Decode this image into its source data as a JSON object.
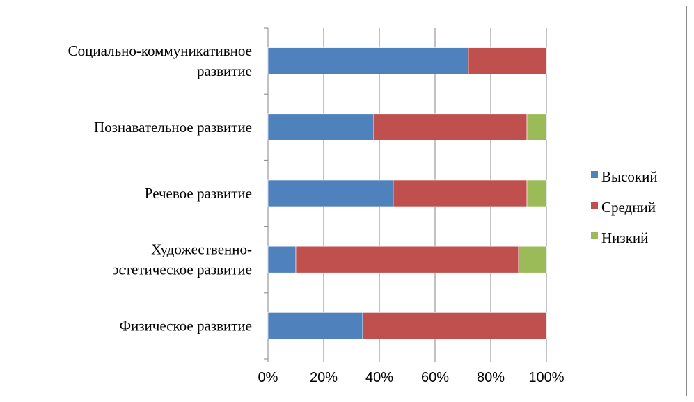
{
  "chart_data": {
    "type": "bar",
    "orientation": "horizontal",
    "stacked": "percent",
    "categories": [
      [
        "Социально-коммуникативное",
        "развитие"
      ],
      [
        "Познавательное развитие"
      ],
      [
        "Речевое развитие"
      ],
      [
        "Художественно-",
        "эстетическое развитие"
      ],
      [
        "Физическое развитие"
      ]
    ],
    "series": [
      {
        "name": "Высокий",
        "color": "#4f81bd",
        "values": [
          72,
          38,
          45,
          10,
          34
        ]
      },
      {
        "name": "Средний",
        "color": "#c0504d",
        "values": [
          28,
          55,
          48,
          80,
          66
        ]
      },
      {
        "name": "Низкий",
        "color": "#9bbb59",
        "values": [
          0,
          7,
          7,
          10,
          0
        ]
      }
    ],
    "xlim": [
      0,
      100
    ],
    "xticks": [
      "0%",
      "20%",
      "40%",
      "60%",
      "80%",
      "100%"
    ],
    "grid": "vertical",
    "legend": "right"
  }
}
